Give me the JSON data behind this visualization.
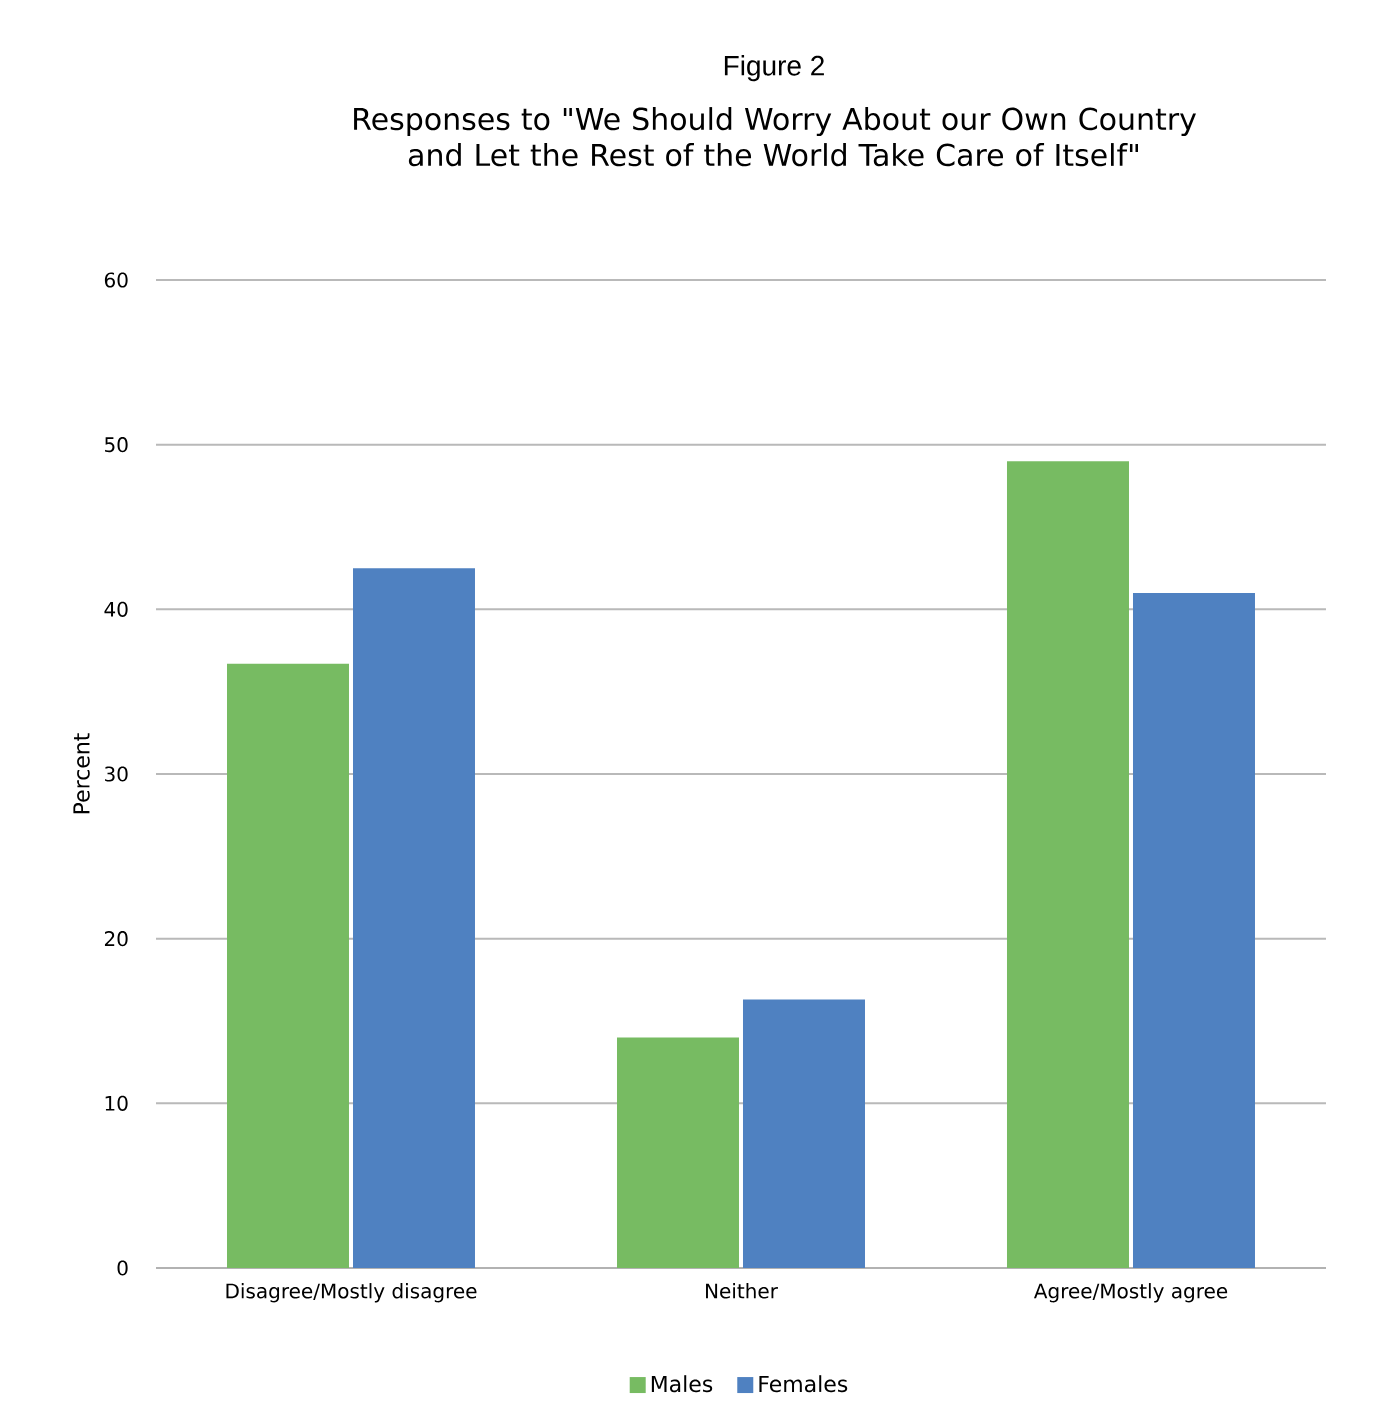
{
  "chart_data": {
    "type": "bar",
    "title": "Figure 2",
    "subtitle": "Responses to \"We Should Worry About our Own Country and Let the Rest of the World Take Care of Itself\"",
    "ylabel": "Percent",
    "categories": [
      "Disagree/Mostly disagree",
      "Neither",
      "Agree/Mostly agree"
    ],
    "series": [
      {
        "name": "Males",
        "color": "#77bb62",
        "values": [
          36.7,
          14.0,
          49.0
        ]
      },
      {
        "name": "Females",
        "color": "#4f81c1",
        "values": [
          42.5,
          16.3,
          41.0
        ]
      }
    ],
    "ylim": [
      0,
      60
    ],
    "yticks": [
      0,
      10,
      20,
      30,
      40,
      50,
      60
    ],
    "grid": "y",
    "legend": "bottom"
  }
}
